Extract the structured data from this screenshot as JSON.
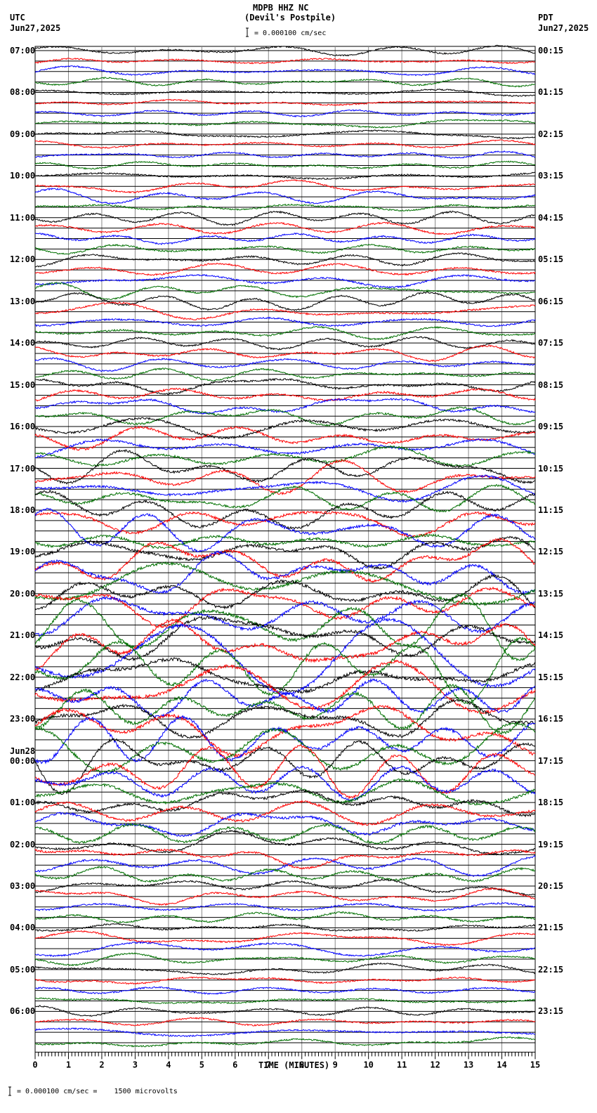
{
  "header": {
    "station": "MDPB HHZ NC",
    "location": "(Devil's Postpile)",
    "scale": "= 0.000100 cm/sec",
    "left_tz": "UTC",
    "left_date": "Jun27,2025",
    "right_tz": "PDT",
    "right_date": "Jun27,2025"
  },
  "footer": {
    "scale_note": "= 0.000100 cm/sec =    1500 microvolts",
    "x_axis_title": "TIME (MINUTES)"
  },
  "chart_data": {
    "type": "line",
    "title": "MDPB HHZ NC (Devil's Postpile)",
    "subtitle": "= 0.000100 cm/sec",
    "xlabel": "TIME (MINUTES)",
    "ylabel": "",
    "xlim": [
      0,
      15
    ],
    "x_ticks": [
      0,
      1,
      2,
      3,
      4,
      5,
      6,
      7,
      8,
      9,
      10,
      11,
      12,
      13,
      14,
      15
    ],
    "grid": true,
    "trace_colors": [
      "#000000",
      "#ff0000",
      "#0000ff",
      "#007000"
    ],
    "left_labels": [
      "07:00",
      "08:00",
      "09:00",
      "10:00",
      "11:00",
      "12:00",
      "13:00",
      "14:00",
      "15:00",
      "16:00",
      "17:00",
      "18:00",
      "19:00",
      "20:00",
      "21:00",
      "22:00",
      "23:00",
      "00:00",
      "01:00",
      "02:00",
      "03:00",
      "04:00",
      "05:00",
      "06:00"
    ],
    "left_date_change": {
      "index": 17,
      "label": "Jun28"
    },
    "right_labels": [
      "00:15",
      "01:15",
      "02:15",
      "03:15",
      "04:15",
      "05:15",
      "06:15",
      "07:15",
      "08:15",
      "09:15",
      "10:15",
      "11:15",
      "12:15",
      "13:15",
      "14:15",
      "15:15",
      "16:15",
      "17:15",
      "18:15",
      "19:15",
      "20:15",
      "21:15",
      "22:15",
      "23:15"
    ],
    "hour_activity": [
      0.6,
      0.5,
      0.6,
      0.8,
      1.0,
      1.0,
      1.0,
      0.9,
      1.5,
      2.0,
      2.0,
      2.6,
      3.2,
      3.4,
      3.8,
      3.8,
      3.6,
      3.0,
      2.4,
      1.6,
      1.0,
      0.9,
      0.7,
      0.8
    ]
  }
}
